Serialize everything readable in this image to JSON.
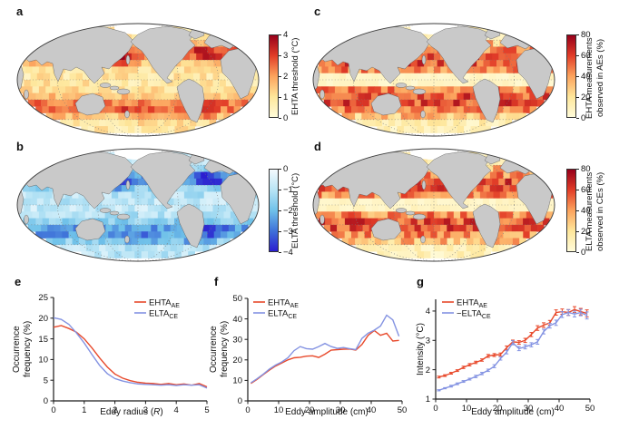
{
  "panels": {
    "a": {
      "letter": "a"
    },
    "b": {
      "letter": "b"
    },
    "c": {
      "letter": "c"
    },
    "d": {
      "letter": "d"
    },
    "e": {
      "letter": "e"
    },
    "f": {
      "letter": "f"
    },
    "g": {
      "letter": "g"
    }
  },
  "colors": {
    "red": "#e8492b",
    "blue": "#8493e2",
    "land": "#c9c9c9",
    "map_outline": "#3c3c3c",
    "axis": "#1a1a1a",
    "red_stops": [
      "#fffbd9",
      "#fee69a",
      "#fca35d",
      "#e23d28",
      "#97001a"
    ],
    "blue_stops": [
      "#f4fbfe",
      "#b8e4f5",
      "#6fc1e9",
      "#3f72d9",
      "#2b1ed0"
    ]
  },
  "chart_data": [
    {
      "id": "a",
      "type": "heatmap",
      "panel_letter": "a",
      "projection": "global Mollweide world map, Pacific-centred, gridded ocean cells",
      "colorbar_label": "EHTA threshold (°C)",
      "colorbar_ticks": [
        "4",
        "3",
        "2",
        "1",
        "0"
      ],
      "value_range": [
        0,
        4
      ],
      "palette": "cream-yellow-orange-red",
      "pattern_note": "pale yellow tropics and subtropics; dark red NW Pacific, Gulf Stream and Southern Ocean mid-latitudes",
      "seed": 11
    },
    {
      "id": "b",
      "type": "heatmap",
      "panel_letter": "b",
      "projection": "global Mollweide world map, Pacific-centred, gridded ocean cells",
      "colorbar_label": "ELTA threshold (°C)",
      "colorbar_ticks": [
        "0",
        "−1",
        "−2",
        "−3",
        "−4"
      ],
      "value_range": [
        0,
        -4
      ],
      "palette": "white-lightblue-deepblue",
      "pattern_note": "light blue tropics; deep blue NW Pacific and SW Atlantic mid-latitudes",
      "seed": 22
    },
    {
      "id": "c",
      "type": "heatmap",
      "panel_letter": "c",
      "projection": "global Mollweide world map, Pacific-centred, gridded ocean cells",
      "colorbar_label_lines": [
        "EHTA measurements",
        "observed in AEs (%)"
      ],
      "colorbar_ticks": [
        "80",
        "60",
        "40",
        "20",
        "0"
      ],
      "value_range": [
        0,
        80
      ],
      "palette": "cream-yellow-orange-red",
      "pattern_note": "white band along the Equator; mottled red 10–50° latitude bands in both hemispheres",
      "seed": 33
    },
    {
      "id": "d",
      "type": "heatmap",
      "panel_letter": "d",
      "projection": "global Mollweide world map, Pacific-centred, gridded ocean cells",
      "colorbar_label_lines": [
        "ELTA measurements",
        "observed in CEs (%)"
      ],
      "colorbar_ticks": [
        "80",
        "60",
        "40",
        "20",
        "0"
      ],
      "value_range": [
        0,
        80
      ],
      "palette": "cream-yellow-orange-red",
      "pattern_note": "white band along the Equator; mottled red 10–50° latitude bands in both hemispheres",
      "seed": 44
    },
    {
      "id": "e",
      "type": "line",
      "panel_letter": "e",
      "xlabel_pre": "Eddy radius (",
      "xlabel_italic": "R",
      "xlabel_post": ")",
      "ylabel_lines": [
        "Occurrence",
        "frequency (%)"
      ],
      "xlim": [
        0,
        5
      ],
      "ylim": [
        0,
        25
      ],
      "xticks": [
        0,
        1,
        2,
        3,
        4,
        5
      ],
      "yticks": [
        0,
        5,
        10,
        15,
        20,
        25
      ],
      "legend_pos": "top-right",
      "x": [
        0,
        0.25,
        0.5,
        0.75,
        1,
        1.25,
        1.5,
        1.75,
        2,
        2.25,
        2.5,
        2.75,
        3,
        3.25,
        3.5,
        3.75,
        4,
        4.25,
        4.5,
        4.75,
        5
      ],
      "series": [
        {
          "label_prefix": "",
          "label_main": "EHTA",
          "label_sub": "AE",
          "color": "red",
          "values": [
            17.8,
            18.2,
            17.5,
            16.6,
            15.0,
            12.8,
            10.4,
            8.2,
            6.5,
            5.5,
            4.9,
            4.5,
            4.3,
            4.2,
            4.0,
            4.2,
            3.9,
            4.1,
            3.8,
            4.2,
            3.4
          ]
        },
        {
          "label_prefix": "",
          "label_main": "ELTA",
          "label_sub": "CE",
          "color": "blue",
          "values": [
            20.1,
            19.7,
            18.5,
            16.4,
            14.0,
            11.2,
            8.6,
            6.6,
            5.4,
            4.8,
            4.4,
            4.1,
            4.0,
            3.9,
            3.8,
            3.9,
            3.7,
            3.9,
            3.8,
            3.9,
            3.1
          ]
        }
      ]
    },
    {
      "id": "f",
      "type": "line",
      "panel_letter": "f",
      "xlabel_pre": "Eddy amplitude (cm)",
      "xlabel_italic": "",
      "xlabel_post": "",
      "ylabel_lines": [
        "Occurrence",
        "frequency (%)"
      ],
      "xlim": [
        0,
        50
      ],
      "ylim": [
        0,
        50
      ],
      "xticks": [
        0,
        10,
        20,
        30,
        40,
        50
      ],
      "yticks": [
        0,
        10,
        20,
        30,
        40,
        50
      ],
      "legend_pos": "top-left",
      "x": [
        1,
        3,
        5,
        7,
        9,
        11,
        13,
        15,
        17,
        19,
        21,
        23,
        25,
        27,
        29,
        31,
        33,
        35,
        37,
        39,
        41,
        43,
        45,
        47,
        49
      ],
      "series": [
        {
          "label_prefix": "",
          "label_main": "EHTA",
          "label_sub": "AE",
          "color": "red",
          "values": [
            8.5,
            10.5,
            12.8,
            15.0,
            17.0,
            18.5,
            20.0,
            21.0,
            21.3,
            21.8,
            22.0,
            21.2,
            22.8,
            24.8,
            25.0,
            25.2,
            25.3,
            24.8,
            27.5,
            32.0,
            34.3,
            32.0,
            33.0,
            29.2,
            29.5
          ]
        },
        {
          "label_prefix": "",
          "label_main": "ELTA",
          "label_sub": "CE",
          "color": "blue",
          "values": [
            8.8,
            10.8,
            13.0,
            15.5,
            17.5,
            19.0,
            21.0,
            24.5,
            26.5,
            25.5,
            25.2,
            26.5,
            28.0,
            26.5,
            25.6,
            26.0,
            25.5,
            25.0,
            30.5,
            33.0,
            34.5,
            36.5,
            41.8,
            39.5,
            31.5
          ]
        }
      ]
    },
    {
      "id": "g",
      "type": "line-errorbar",
      "panel_letter": "g",
      "xlabel_pre": "Eddy amplitude (cm)",
      "xlabel_italic": "",
      "xlabel_post": "",
      "ylabel_lines": [
        "Intensity (°C)"
      ],
      "xlim": [
        0,
        50
      ],
      "ylim": [
        1,
        4.4
      ],
      "xticks": [
        0,
        10,
        20,
        30,
        40,
        50
      ],
      "yticks": [
        1,
        2,
        3,
        4
      ],
      "legend_pos": "top-left",
      "x": [
        1,
        3,
        5,
        7,
        9,
        11,
        13,
        15,
        17,
        19,
        21,
        23,
        25,
        27,
        29,
        31,
        33,
        35,
        37,
        39,
        41,
        43,
        45,
        47,
        49
      ],
      "series": [
        {
          "label_prefix": "",
          "label_main": "EHTA",
          "label_sub": "AE",
          "color": "red",
          "values": [
            1.75,
            1.8,
            1.88,
            1.97,
            2.08,
            2.17,
            2.25,
            2.33,
            2.47,
            2.5,
            2.52,
            2.75,
            2.95,
            2.93,
            3.0,
            3.2,
            3.42,
            3.52,
            3.6,
            3.95,
            3.98,
            3.95,
            4.05,
            3.98,
            3.92
          ],
          "err": [
            0.03,
            0.03,
            0.03,
            0.03,
            0.04,
            0.04,
            0.04,
            0.04,
            0.05,
            0.05,
            0.05,
            0.06,
            0.06,
            0.06,
            0.07,
            0.07,
            0.08,
            0.08,
            0.08,
            0.09,
            0.09,
            0.1,
            0.1,
            0.11,
            0.12
          ]
        },
        {
          "label_prefix": "−",
          "label_main": "ELTA",
          "label_sub": "CE",
          "color": "blue",
          "values": [
            1.3,
            1.37,
            1.44,
            1.52,
            1.6,
            1.68,
            1.77,
            1.87,
            1.98,
            2.12,
            2.38,
            2.6,
            2.92,
            2.72,
            2.78,
            2.85,
            2.95,
            3.3,
            3.5,
            3.6,
            3.88,
            3.95,
            3.9,
            3.95,
            3.85
          ],
          "err": [
            0.02,
            0.02,
            0.03,
            0.03,
            0.03,
            0.03,
            0.04,
            0.04,
            0.04,
            0.05,
            0.05,
            0.06,
            0.07,
            0.07,
            0.07,
            0.07,
            0.08,
            0.08,
            0.08,
            0.09,
            0.1,
            0.1,
            0.1,
            0.11,
            0.12
          ]
        }
      ]
    }
  ]
}
